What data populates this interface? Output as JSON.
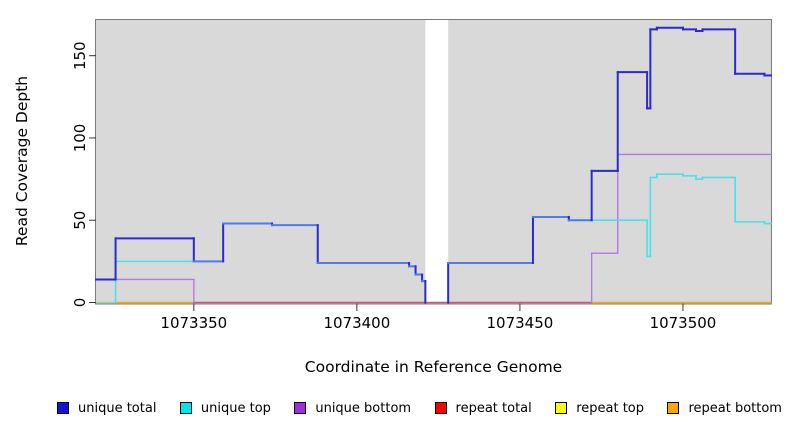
{
  "figure": {
    "background_color": "#ffffff",
    "plot_background_color": "#d9d9d9",
    "box_color": "#7a7a7a",
    "tick_color": "#333333",
    "x_axis": {
      "label": "Coordinate in Reference Genome",
      "tick_labels": [
        "1073350",
        "1073400",
        "1073450",
        "1073500"
      ]
    },
    "y_axis": {
      "label": "Read Coverage Depth",
      "tick_labels": [
        "0",
        "50",
        "100",
        "150"
      ]
    }
  },
  "legend": {
    "items": [
      {
        "label": "unique total",
        "color": "#1414d8"
      },
      {
        "label": "unique top",
        "color": "#00e5ee"
      },
      {
        "label": "unique bottom",
        "color": "#a12ce0"
      },
      {
        "label": "repeat total",
        "color": "#ff0000"
      },
      {
        "label": "repeat top",
        "color": "#ffff00"
      },
      {
        "label": "repeat bottom",
        "color": "#ffa500"
      }
    ]
  },
  "chart_data": {
    "type": "line",
    "line_style": "step",
    "title": "",
    "xlabel": "Coordinate in Reference Genome",
    "ylabel": "Read Coverage Depth",
    "xlim": [
      1073320,
      1073527
    ],
    "ylim": [
      0,
      172
    ],
    "x_ticks": [
      1073350,
      1073400,
      1073450,
      1073500
    ],
    "y_ticks": [
      0,
      50,
      100,
      150
    ],
    "grid": false,
    "legend_position": "bottom",
    "no_data_gap": {
      "x_start": 1073421,
      "x_end": 1073428
    },
    "series": [
      {
        "name": "unique total",
        "color": "#2a2ad0",
        "overlap_color": "#4d7bf0",
        "width": 2,
        "steps": [
          [
            1073320,
            14
          ],
          [
            1073326,
            39
          ],
          [
            1073350,
            25
          ],
          [
            1073359,
            48
          ],
          [
            1073374,
            47
          ],
          [
            1073388,
            24
          ],
          [
            1073416,
            22
          ],
          [
            1073418,
            17
          ],
          [
            1073420,
            13
          ],
          [
            1073421,
            0
          ],
          [
            1073428,
            24
          ],
          [
            1073454,
            52
          ],
          [
            1073465,
            50
          ],
          [
            1073472,
            80
          ],
          [
            1073480,
            140
          ],
          [
            1073489,
            118
          ],
          [
            1073490,
            166
          ],
          [
            1073492,
            167
          ],
          [
            1073500,
            166
          ],
          [
            1073504,
            165
          ],
          [
            1073506,
            166
          ],
          [
            1073516,
            139
          ],
          [
            1073525,
            138
          ]
        ]
      },
      {
        "name": "unique top",
        "color": "#4ae0ec",
        "width": 1.6,
        "steps": [
          [
            1073320,
            0
          ],
          [
            1073326,
            25
          ],
          [
            1073359,
            48
          ],
          [
            1073374,
            47
          ],
          [
            1073388,
            24
          ],
          [
            1073416,
            22
          ],
          [
            1073418,
            17
          ],
          [
            1073420,
            13
          ],
          [
            1073421,
            0
          ],
          [
            1073428,
            24
          ],
          [
            1073454,
            52
          ],
          [
            1073465,
            50
          ],
          [
            1073489,
            28
          ],
          [
            1073490,
            76
          ],
          [
            1073492,
            78
          ],
          [
            1073500,
            77
          ],
          [
            1073504,
            75
          ],
          [
            1073506,
            76
          ],
          [
            1073516,
            49
          ],
          [
            1073525,
            48
          ]
        ]
      },
      {
        "name": "unique bottom",
        "color": "#b379e3",
        "width": 1.4,
        "steps": [
          [
            1073320,
            14
          ],
          [
            1073350,
            0
          ],
          [
            1073472,
            30
          ],
          [
            1073480,
            90
          ]
        ]
      },
      {
        "name": "repeat total",
        "color": "#ff0000",
        "width": 1.4,
        "steps": [
          [
            1073320,
            0
          ]
        ]
      },
      {
        "name": "repeat top",
        "color": "#ffff00",
        "width": 1.4,
        "steps": [
          [
            1073320,
            0
          ]
        ]
      },
      {
        "name": "repeat bottom",
        "color": "#ffa500",
        "width": 1.4,
        "steps": [
          [
            1073320,
            0
          ]
        ]
      }
    ],
    "zero_line_segments": [
      {
        "from": 1073320,
        "to": 1073326,
        "color": "#8fdc96"
      },
      {
        "from": 1073326,
        "to": 1073350,
        "color": "#ffa500"
      },
      {
        "from": 1073350,
        "to": 1073472,
        "color": "#d1517a"
      },
      {
        "from": 1073472,
        "to": 1073527,
        "color": "#ffa500"
      }
    ]
  }
}
